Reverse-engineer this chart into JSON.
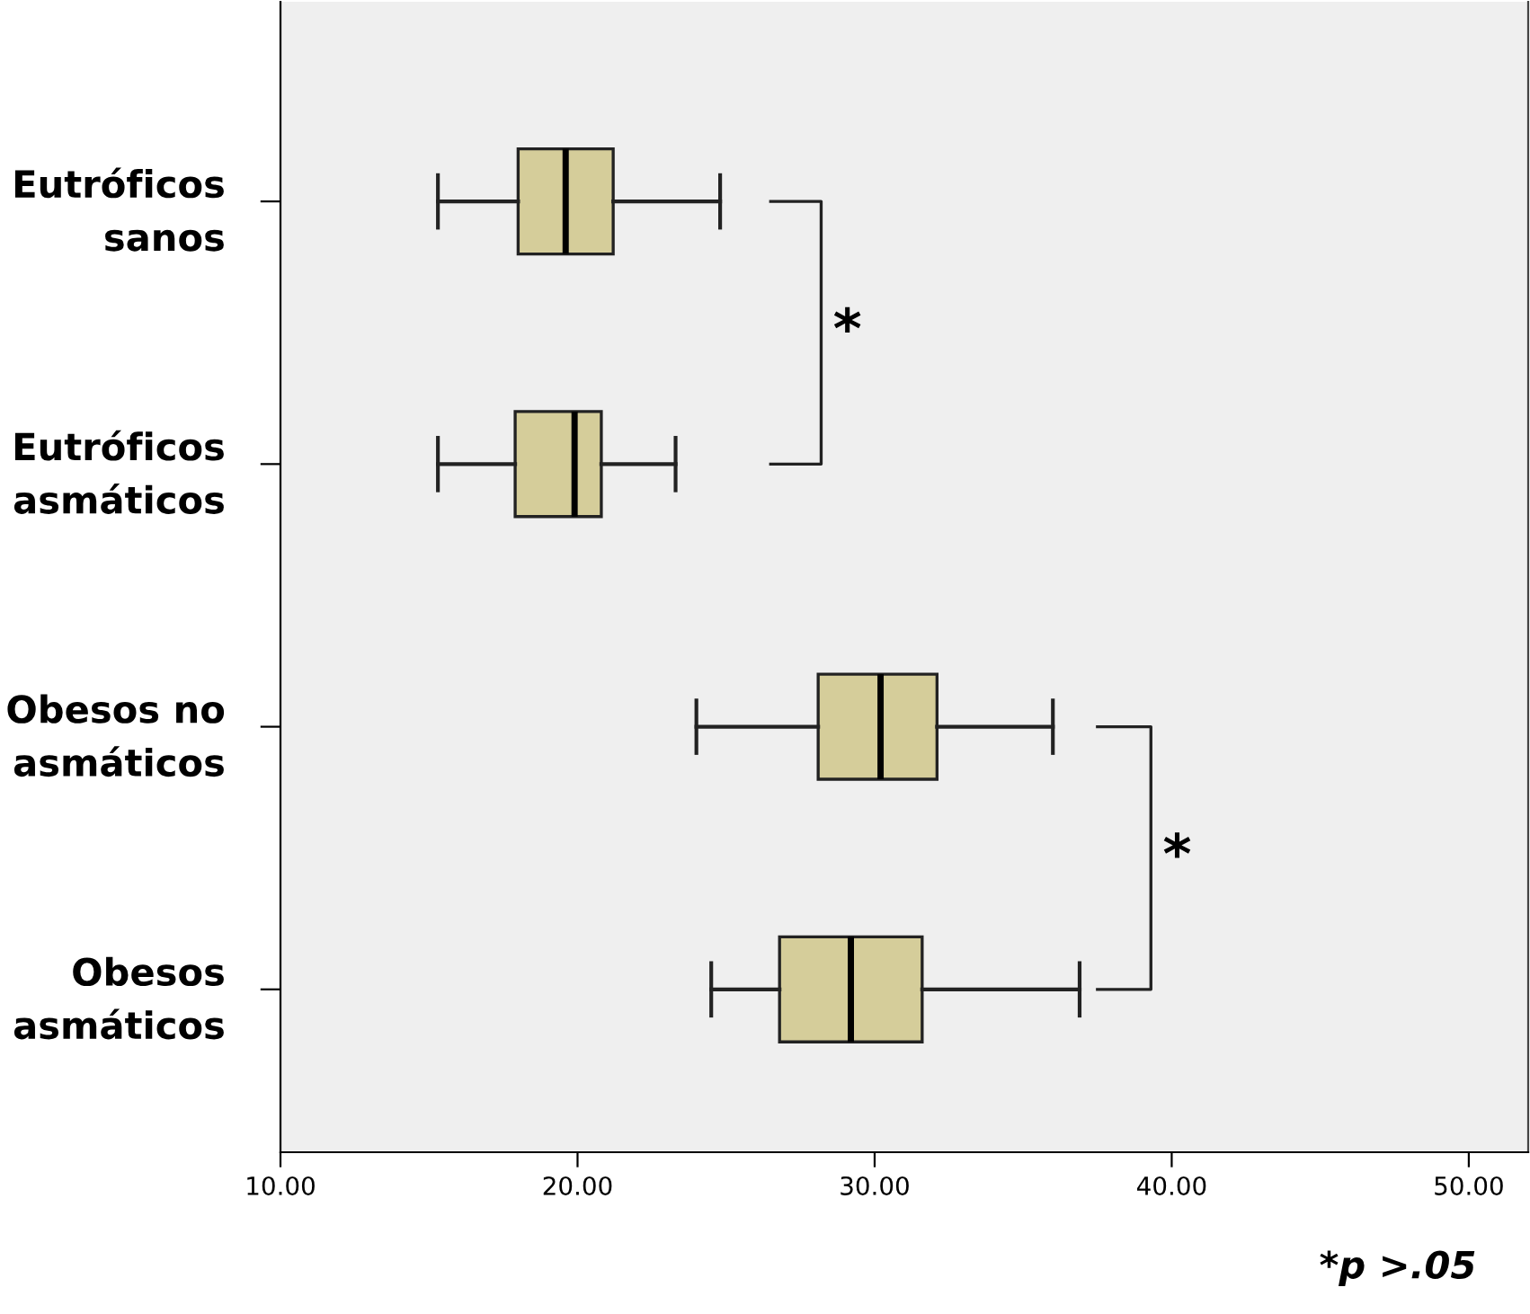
{
  "chart_data": {
    "type": "box",
    "orientation": "horizontal",
    "categories": [
      "Eutróficos\nsanos",
      "Eutróficos\nasmáticos",
      "Obesos no\nasmáticos",
      "Obesos\nasmáticos"
    ],
    "boxes": [
      {
        "low": 15.3,
        "q1": 18.0,
        "median": 19.6,
        "q3": 21.2,
        "high": 24.8
      },
      {
        "low": 15.3,
        "q1": 17.9,
        "median": 19.9,
        "q3": 20.8,
        "high": 23.3
      },
      {
        "low": 24.0,
        "q1": 28.1,
        "median": 30.2,
        "q3": 32.1,
        "high": 36.0
      },
      {
        "low": 24.5,
        "q1": 26.8,
        "median": 29.2,
        "q3": 31.6,
        "high": 36.9
      }
    ],
    "color": "#d5cd9a",
    "xlim": [
      10,
      52
    ],
    "xticks": [
      {
        "value": 10,
        "label": "10.00"
      },
      {
        "value": 20,
        "label": "20.00"
      },
      {
        "value": 30,
        "label": "30.00"
      },
      {
        "value": 40,
        "label": "40.00"
      },
      {
        "value": 50,
        "label": "50.00"
      }
    ],
    "annotations": [
      "*",
      "*",
      "*p >.05"
    ],
    "grid": false,
    "legend": false
  }
}
